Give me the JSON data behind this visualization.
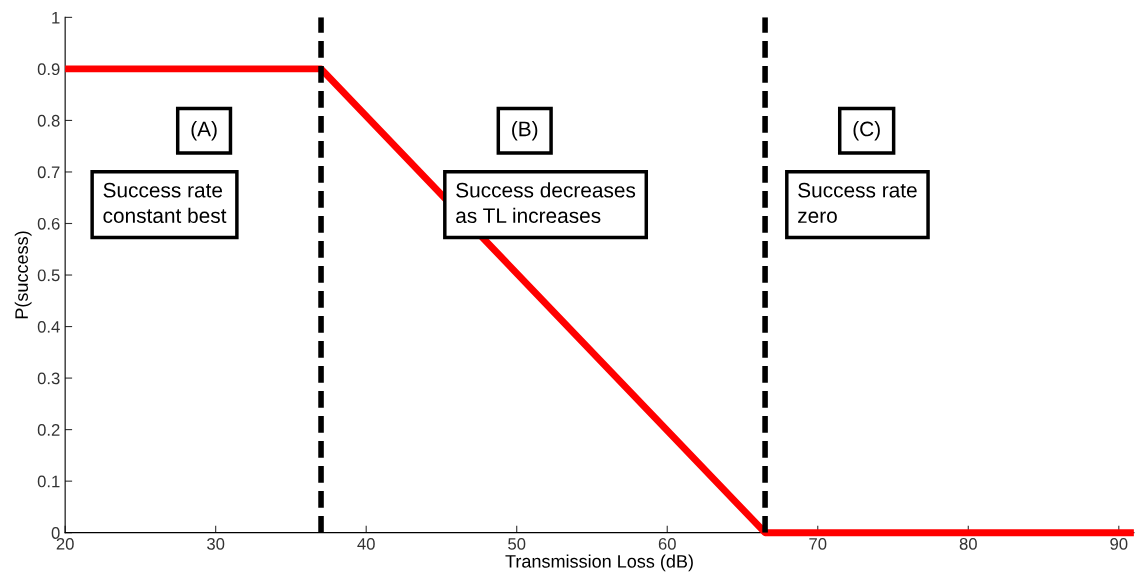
{
  "chart_data": {
    "type": "line",
    "xlabel": "Transmission Loss (dB)",
    "ylabel": "P(success)",
    "x": [
      20,
      37,
      66.5,
      91
    ],
    "series": [
      {
        "color": "#ff0000",
        "values": [
          0.9,
          0.9,
          0,
          0
        ]
      }
    ],
    "xlim": [
      20,
      91
    ],
    "xticks": [
      20,
      30,
      40,
      50,
      60,
      70,
      80,
      90
    ],
    "ylim": [
      0,
      1
    ],
    "yticks": [
      0,
      0.1,
      0.2,
      0.3,
      0.4,
      0.5,
      0.6,
      0.7,
      0.8,
      0.9,
      1
    ],
    "ref_lines": [
      {
        "axis": "x",
        "value": 37,
        "color": "#000000",
        "line_style": "dashed"
      },
      {
        "axis": "x",
        "value": 66.5,
        "color": "#000000",
        "line_style": "dashed"
      }
    ],
    "annotations": [
      "(A)",
      "Success rate\nconstant best",
      "(B)",
      "Success decreases\nas TL increases",
      "(C)",
      "Success rate\nzero"
    ],
    "grid": false,
    "legend": false,
    "marker": "none",
    "line_style": "solid"
  }
}
